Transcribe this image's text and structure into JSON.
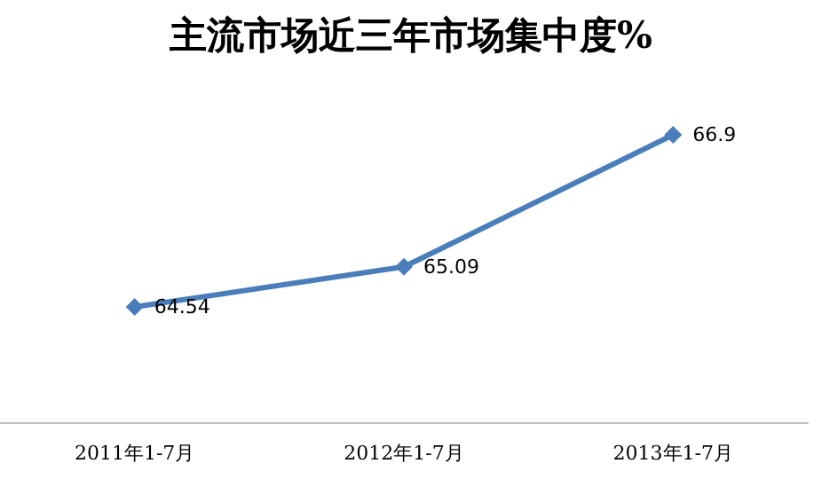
{
  "chart_data": {
    "type": "line",
    "title": "主流市场近三年市场集中度%",
    "categories": [
      "2011年1-7月",
      "2012年1-7月",
      "2013年1-7月"
    ],
    "series": [
      {
        "color": "#4a7ebb",
        "values": [
          64.54,
          65.09,
          66.9
        ]
      }
    ],
    "data_labels": true,
    "marker": "diamond",
    "line_style": "solid",
    "grid": false,
    "tick_labels": "x"
  }
}
